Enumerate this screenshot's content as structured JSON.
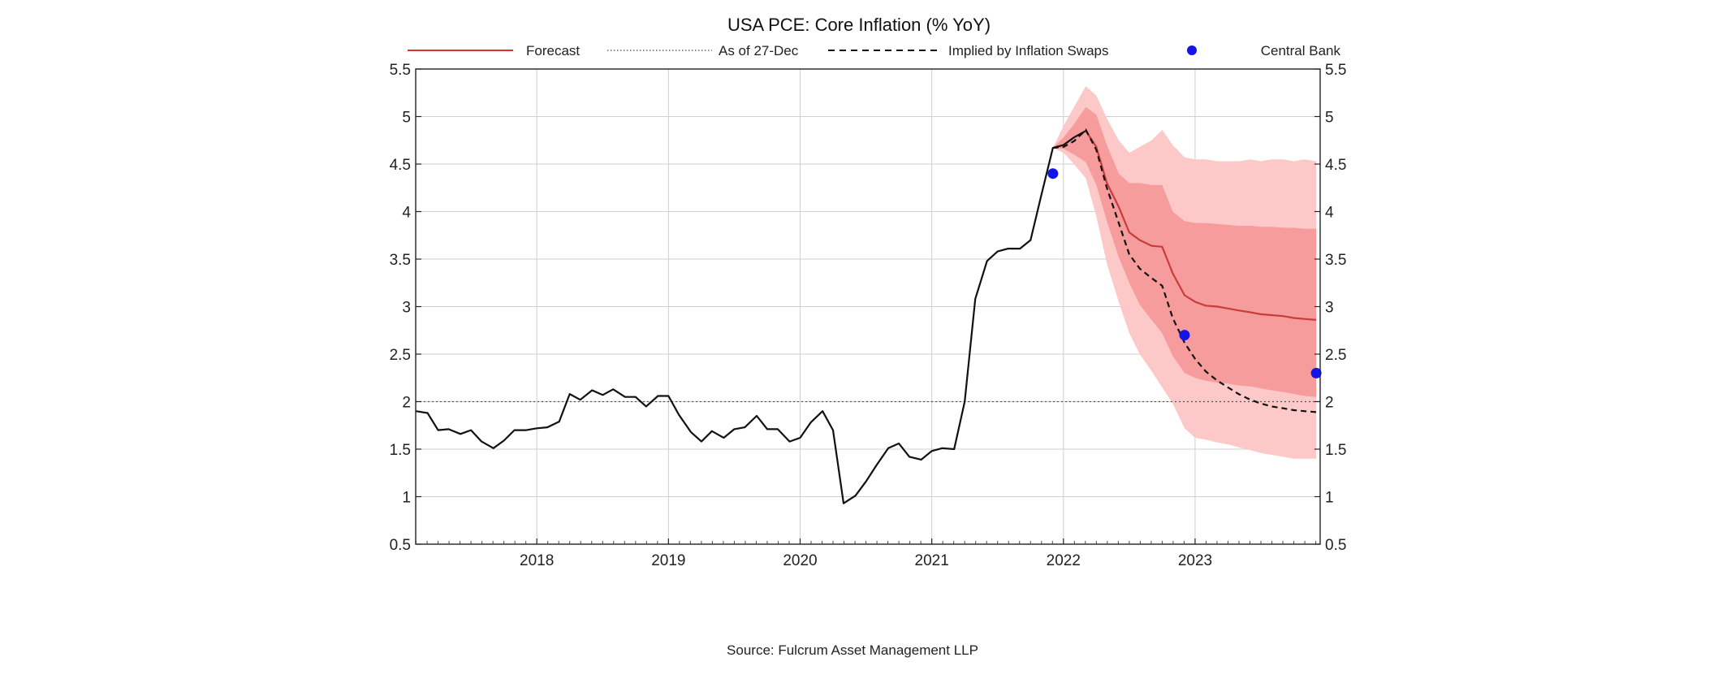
{
  "chart_data": {
    "type": "line",
    "title": "USA PCE: Core Inflation (% YoY)",
    "source": "Source: Fulcrum Asset Management LLP",
    "xlabel": "",
    "ylabel": "",
    "xlim": [
      2017.08,
      2023.95
    ],
    "ylim": [
      0.5,
      5.5
    ],
    "y_ticks": [
      "0.5",
      "1",
      "1.5",
      "2",
      "2.5",
      "3",
      "3.5",
      "4",
      "4.5",
      "5",
      "5.5"
    ],
    "x_ticks": [
      {
        "label": "2018",
        "x": 2018.0
      },
      {
        "label": "2019",
        "x": 2019.0
      },
      {
        "label": "2020",
        "x": 2020.0
      },
      {
        "label": "2021",
        "x": 2021.0
      },
      {
        "label": "2022",
        "x": 2022.0
      },
      {
        "label": "2023",
        "x": 2023.0
      }
    ],
    "grid": true,
    "legend": {
      "placement": "top",
      "entries": [
        {
          "name": "Forecast",
          "style": "solid",
          "color": "#e03030"
        },
        {
          "name": "As of 27-Dec",
          "style": "dotted",
          "color": "#666666"
        },
        {
          "name": "Implied by Inflation Swaps",
          "style": "dashed",
          "color": "#111111"
        },
        {
          "name": "Central Bank",
          "style": "marker",
          "color": "#1414e6"
        }
      ]
    },
    "reference_line": {
      "y": 2.0
    },
    "colors": {
      "actual": "#111111",
      "forecast": "#c83c3c",
      "band_inner": "#f79c9c",
      "band_outer": "#fcc8c8",
      "central_bank": "#1414e6",
      "grid": "#cfcfcf"
    },
    "series": [
      {
        "name": "",
        "kind": "actual",
        "x": [
          2017.08,
          2017.17,
          2017.25,
          2017.33,
          2017.42,
          2017.5,
          2017.58,
          2017.67,
          2017.75,
          2017.83,
          2017.92,
          2018.0,
          2018.08,
          2018.17,
          2018.25,
          2018.33,
          2018.42,
          2018.5,
          2018.58,
          2018.67,
          2018.75,
          2018.83,
          2018.92,
          2019.0,
          2019.08,
          2019.17,
          2019.25,
          2019.33,
          2019.42,
          2019.5,
          2019.58,
          2019.67,
          2019.75,
          2019.83,
          2019.92,
          2020.0,
          2020.08,
          2020.17,
          2020.25,
          2020.33,
          2020.42,
          2020.5,
          2020.58,
          2020.67,
          2020.75,
          2020.83,
          2020.92,
          2021.0,
          2021.08,
          2021.17,
          2021.25,
          2021.33,
          2021.42,
          2021.5,
          2021.58,
          2021.67,
          2021.75,
          2021.83,
          2021.92,
          2022.0,
          2022.08,
          2022.17
        ],
        "y": [
          1.9,
          1.88,
          1.7,
          1.71,
          1.66,
          1.7,
          1.58,
          1.51,
          1.59,
          1.7,
          1.7,
          1.72,
          1.73,
          1.79,
          2.08,
          2.02,
          2.12,
          2.07,
          2.13,
          2.05,
          2.05,
          1.95,
          2.06,
          2.06,
          1.86,
          1.68,
          1.58,
          1.69,
          1.62,
          1.71,
          1.73,
          1.85,
          1.71,
          1.71,
          1.58,
          1.62,
          1.78,
          1.9,
          1.7,
          0.93,
          1.01,
          1.16,
          1.33,
          1.51,
          1.56,
          1.42,
          1.39,
          1.48,
          1.51,
          1.5,
          2.0,
          3.08,
          3.48,
          3.58,
          3.61,
          3.61,
          3.7,
          4.16,
          4.67,
          4.7,
          4.78,
          4.85
        ]
      },
      {
        "name": "Forecast",
        "kind": "forecast",
        "x": [
          2022.17,
          2022.25,
          2022.33,
          2022.42,
          2022.5,
          2022.58,
          2022.67,
          2022.75,
          2022.83,
          2022.92,
          2023.0,
          2023.08,
          2023.17,
          2023.25,
          2023.33,
          2023.42,
          2023.5,
          2023.58,
          2023.67,
          2023.75,
          2023.83,
          2023.92
        ],
        "y": [
          4.85,
          4.68,
          4.3,
          4.05,
          3.78,
          3.7,
          3.64,
          3.63,
          3.35,
          3.12,
          3.05,
          3.01,
          3.0,
          2.98,
          2.96,
          2.94,
          2.92,
          2.91,
          2.9,
          2.88,
          2.87,
          2.86
        ]
      },
      {
        "name": "Implied by Inflation Swaps",
        "kind": "swaps",
        "x": [
          2021.92,
          2022.0,
          2022.08,
          2022.17,
          2022.25,
          2022.33,
          2022.42,
          2022.5,
          2022.58,
          2022.67,
          2022.75,
          2022.83,
          2022.92,
          2023.0,
          2023.08,
          2023.17,
          2023.25,
          2023.33,
          2023.42,
          2023.5,
          2023.58,
          2023.67,
          2023.75,
          2023.83,
          2023.92
        ],
        "y": [
          4.67,
          4.68,
          4.74,
          4.86,
          4.65,
          4.25,
          3.88,
          3.55,
          3.4,
          3.3,
          3.22,
          2.88,
          2.62,
          2.45,
          2.32,
          2.22,
          2.15,
          2.08,
          2.02,
          1.98,
          1.95,
          1.93,
          1.91,
          1.9,
          1.89
        ]
      },
      {
        "name": "Central Bank",
        "kind": "points",
        "x": [
          2021.92,
          2022.92,
          2023.92
        ],
        "y": [
          4.4,
          2.7,
          2.3
        ]
      }
    ],
    "bands": [
      {
        "name": "outer",
        "x": [
          2021.92,
          2022.0,
          2022.08,
          2022.17,
          2022.25,
          2022.33,
          2022.42,
          2022.5,
          2022.58,
          2022.67,
          2022.75,
          2022.83,
          2022.92,
          2023.0,
          2023.08,
          2023.17,
          2023.25,
          2023.33,
          2023.42,
          2023.5,
          2023.58,
          2023.67,
          2023.75,
          2023.83,
          2023.92
        ],
        "upper": [
          4.67,
          4.9,
          5.1,
          5.32,
          5.22,
          4.98,
          4.75,
          4.62,
          4.68,
          4.75,
          4.86,
          4.7,
          4.57,
          4.55,
          4.55,
          4.53,
          4.53,
          4.53,
          4.55,
          4.53,
          4.55,
          4.55,
          4.53,
          4.55,
          4.53
        ],
        "lower": [
          4.67,
          4.62,
          4.5,
          4.35,
          3.95,
          3.45,
          3.05,
          2.72,
          2.5,
          2.32,
          2.15,
          1.98,
          1.72,
          1.62,
          1.6,
          1.57,
          1.55,
          1.52,
          1.49,
          1.46,
          1.44,
          1.42,
          1.4,
          1.4,
          1.4
        ]
      },
      {
        "name": "inner",
        "x": [
          2021.92,
          2022.0,
          2022.08,
          2022.17,
          2022.25,
          2022.33,
          2022.42,
          2022.5,
          2022.58,
          2022.67,
          2022.75,
          2022.83,
          2022.92,
          2023.0,
          2023.08,
          2023.17,
          2023.25,
          2023.33,
          2023.42,
          2023.5,
          2023.58,
          2023.67,
          2023.75,
          2023.83,
          2023.92
        ],
        "upper": [
          4.67,
          4.78,
          4.92,
          5.1,
          5.02,
          4.7,
          4.4,
          4.3,
          4.3,
          4.28,
          4.28,
          4.0,
          3.9,
          3.88,
          3.88,
          3.87,
          3.86,
          3.85,
          3.85,
          3.84,
          3.84,
          3.83,
          3.83,
          3.82,
          3.82
        ],
        "lower": [
          4.67,
          4.66,
          4.6,
          4.52,
          4.28,
          3.9,
          3.52,
          3.25,
          3.02,
          2.86,
          2.72,
          2.48,
          2.3,
          2.25,
          2.22,
          2.2,
          2.19,
          2.17,
          2.16,
          2.14,
          2.12,
          2.1,
          2.08,
          2.06,
          2.05
        ]
      }
    ]
  }
}
